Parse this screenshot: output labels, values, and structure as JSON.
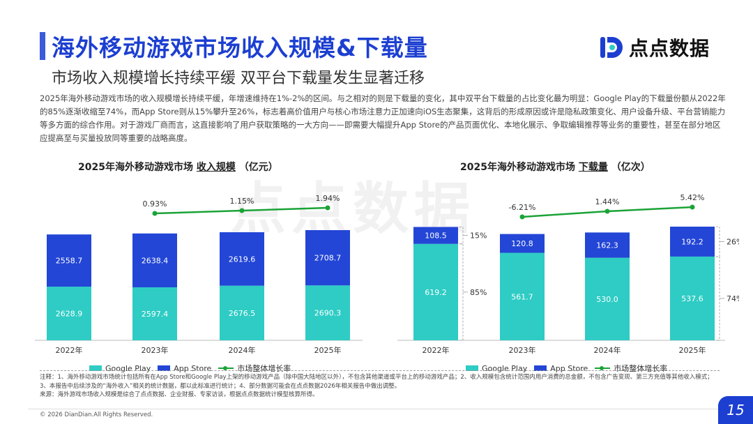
{
  "header": {
    "title": "海外移动游戏市场收入规模&下载量",
    "subtitle": "市场收入规模增长持续平缓 双平台下载量发生显著迁移",
    "logo_text": "点点数据",
    "description": "2025年海外移动游戏市场的收入规模增长持续平缓，年增速维持在1%-2%的区间。与之相对的则是下载量的变化，其中双平台下载量的占比变化最为明显：Google Play的下载量份额从2022年的85%逐渐收缩至74%，而App Store则从15%攀升至26%，标志着高价值用户与核心市场注意力正加速向iOS生态聚集，这背后的形成原因或许是隐私政策变化、用户设备升级、平台营销能力等多方面的综合作用。对于游戏厂商而言，这直接影响了用户获取策略的一大方向——即需要大幅提升App Store的产品页面优化、本地化展示、争取编辑推荐等业务的重要性，甚至在部分地区应提高至与买量投放同等重要的战略高度。"
  },
  "colors": {
    "google_play": "#2ECCC4",
    "app_store": "#2346D6",
    "growth_line": "#1AA336",
    "title_blue": "#1C3FD1"
  },
  "legend": {
    "google_play": "Google Play",
    "app_store": "App Store",
    "growth": "市场整体增长率"
  },
  "chart_data": [
    {
      "type": "bar",
      "title_prefix": "2025年海外移动游戏市场",
      "title_main": "收入规模",
      "title_unit": "（亿元）",
      "categories": [
        "2022年",
        "2023年",
        "2024年",
        "2025年"
      ],
      "series": [
        {
          "name": "Google Play",
          "values": [
            2628.9,
            2597.4,
            2676.5,
            2690.3
          ]
        },
        {
          "name": "App Store",
          "values": [
            2558.7,
            2638.4,
            2619.6,
            2708.7
          ]
        }
      ],
      "growth": {
        "name": "市场整体增长率",
        "values": [
          null,
          "0.93%",
          "1.15%",
          "1.94%"
        ]
      }
    },
    {
      "type": "bar",
      "title_prefix": "2025年海外移动游戏市场",
      "title_main": "下载量",
      "title_unit": "（亿次）",
      "categories": [
        "2022年",
        "2023年",
        "2024年",
        "2025年"
      ],
      "series": [
        {
          "name": "Google Play",
          "values": [
            619.2,
            561.7,
            530.0,
            537.6
          ]
        },
        {
          "name": "App Store",
          "values": [
            108.5,
            120.8,
            162.3,
            192.2
          ]
        }
      ],
      "growth": {
        "name": "市场整体增长率",
        "values": [
          null,
          "-6.21%",
          "1.44%",
          "5.42%"
        ]
      },
      "share_2022": {
        "app_store": "15%",
        "google_play": "85%"
      },
      "share_2025": {
        "app_store": "26%",
        "google_play": "74%"
      }
    }
  ],
  "notes": {
    "line1": "注释：1、海外移动游戏市场统计包括所有在App Store和Google Play上架的移动游戏产品（除中国大陆地区以外），不包含其他渠道或平台上的移动游戏产品；2、收入规模包含统计范围内用户消费的总金额，不包含广告变现、第三方充值等其他收入模式；3、本报告中后续涉及的“海外收入”相关的统计数据，都以此标准进行统计；4、部分数据可能会在点点数据2026年相关报告中做出调整。",
    "line2": "来源：海外游戏市场收入规模是综合了点点数据、企业财报、专家访谈，根据点点数据统计模型核算所得。"
  },
  "footer": {
    "copyright": "© 2026 DianDian.All Rights Reserved.",
    "page": "15"
  }
}
